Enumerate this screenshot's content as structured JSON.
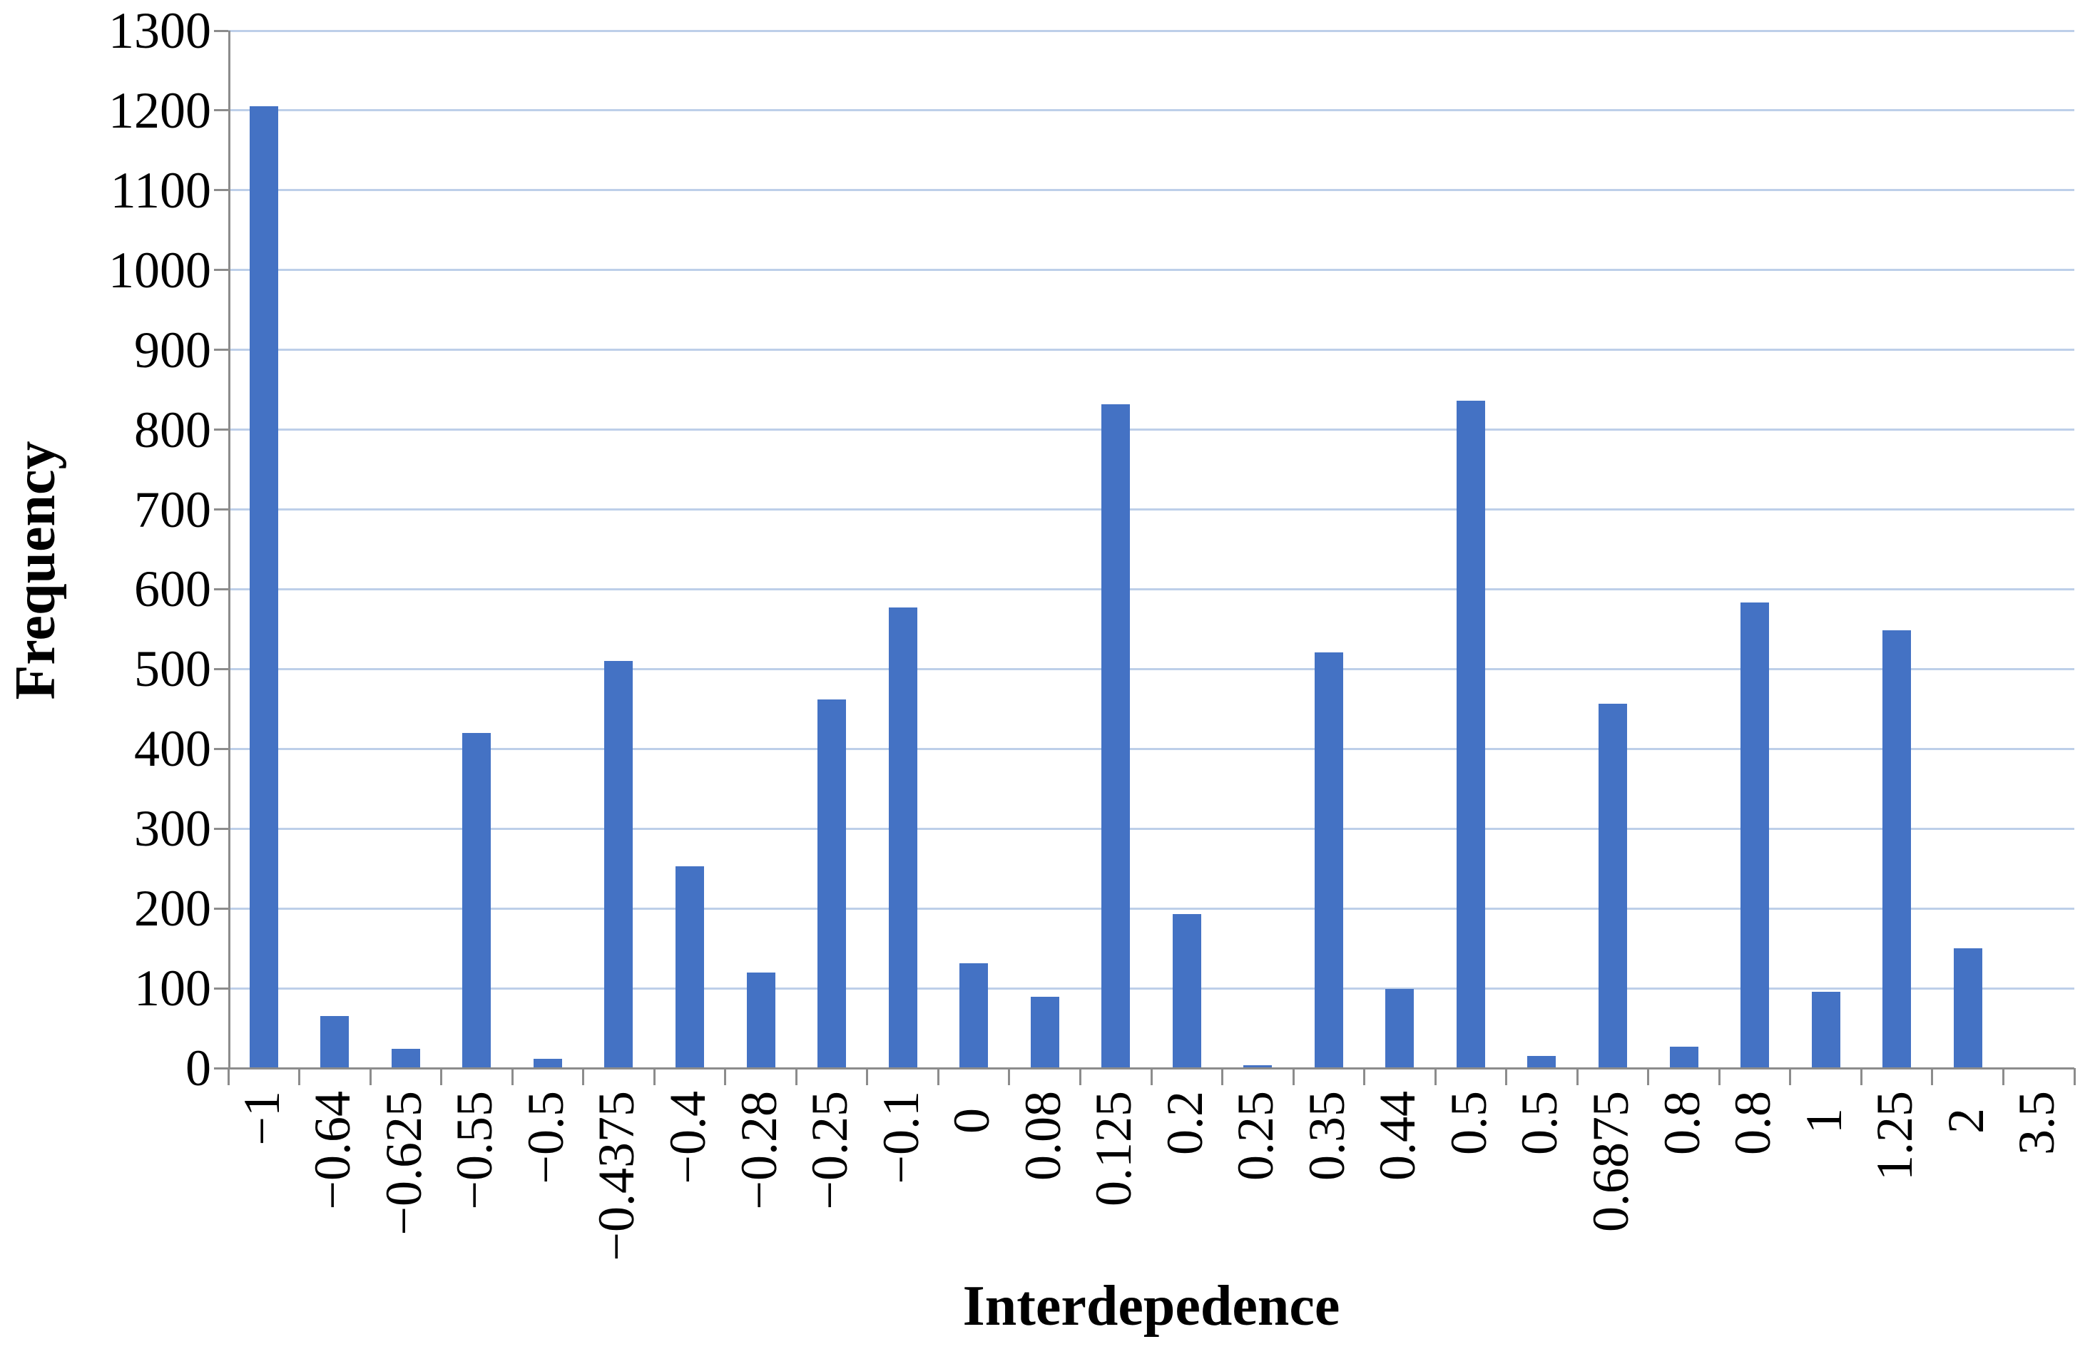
{
  "chart_data": {
    "type": "bar",
    "title": "",
    "xlabel": "Interdepedence",
    "ylabel": "Frequency",
    "categories": [
      "−1",
      "−0.64",
      "−0.625",
      "−0.55",
      "−0.5",
      "−0.4375",
      "−0.4",
      "−0.28",
      "−0.25",
      "−0.1",
      "0",
      "0.08",
      "0.125",
      "0.2",
      "0.25",
      "0.35",
      "0.44",
      "0.5",
      "0.5",
      "0.6875",
      "0.8",
      "0.8",
      "1",
      "1.25",
      "2",
      "3.5"
    ],
    "values": [
      1205,
      65,
      24,
      420,
      12,
      510,
      253,
      120,
      462,
      577,
      131,
      89,
      832,
      193,
      4,
      521,
      99,
      836,
      15,
      457,
      27,
      583,
      96,
      549,
      150,
      0
    ],
    "ylim": [
      0,
      1300
    ],
    "yticks": [
      0,
      100,
      200,
      300,
      400,
      500,
      600,
      700,
      800,
      900,
      1000,
      1100,
      1200,
      1300
    ],
    "grid": "horizontal",
    "legend": "none",
    "colors": {
      "bar": "#4472c4",
      "gridline": "#bdcfe9",
      "axis": "#8c8c8c",
      "text": "#000000"
    }
  }
}
